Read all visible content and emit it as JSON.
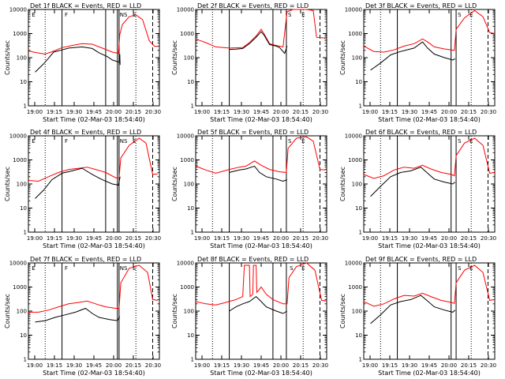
{
  "chart_data": [
    {
      "panel": "1f",
      "title": "Det 1f BLACK = Events, RED = LLD",
      "ylabel": "Counts/sec",
      "xlabel": "Start Time (02-Mar-03 18:54:40)",
      "black": [
        [
          0.2,
          25
        ],
        [
          0.45,
          55
        ],
        [
          0.6,
          95
        ],
        [
          0.75,
          170
        ],
        [
          1.0,
          210
        ],
        [
          1.2,
          250
        ],
        [
          1.6,
          280
        ],
        [
          1.9,
          240
        ],
        [
          2.1,
          160
        ],
        [
          2.35,
          110
        ],
        [
          2.5,
          80
        ],
        [
          2.7,
          65
        ],
        [
          2.72,
          140
        ],
        [
          2.73,
          50
        ]
      ],
      "red": [
        [
          0,
          190
        ],
        [
          0.2,
          165
        ],
        [
          0.5,
          140
        ],
        [
          0.7,
          175
        ],
        [
          1.0,
          260
        ],
        [
          1.3,
          320
        ],
        [
          1.6,
          380
        ],
        [
          1.9,
          360
        ],
        [
          2.2,
          250
        ],
        [
          2.5,
          170
        ],
        [
          2.68,
          150
        ],
        [
          2.72,
          900
        ],
        [
          2.8,
          2400
        ],
        [
          3.0,
          5000
        ],
        [
          3.2,
          6000
        ],
        [
          3.4,
          3800
        ],
        [
          3.6,
          500
        ],
        [
          3.75,
          300
        ],
        [
          3.85,
          290
        ]
      ],
      "markers_dotted": [
        0.5,
        3.2
      ],
      "markers_solid": [
        1.0,
        2.3,
        2.65,
        2.7
      ],
      "markers_dashed": [
        3.7
      ],
      "labels": [
        {
          "x": 0.1,
          "t": "E"
        },
        {
          "x": 1.08,
          "t": "F"
        },
        {
          "x": 2.72,
          "t": "NS"
        },
        {
          "x": 3.1,
          "t": "E"
        }
      ]
    },
    {
      "panel": "2f",
      "title": "Det 2f BLACK = Events, RED = LLD",
      "ylabel": "Counts/sec",
      "xlabel": "Start Time (02-Mar-03 18:54:40)",
      "black": [
        [
          1.0,
          220
        ],
        [
          1.2,
          225
        ],
        [
          1.4,
          240
        ],
        [
          1.6,
          380
        ],
        [
          1.8,
          700
        ],
        [
          1.95,
          1200
        ],
        [
          2.05,
          800
        ],
        [
          2.2,
          350
        ],
        [
          2.4,
          300
        ],
        [
          2.5,
          260
        ],
        [
          2.65,
          150
        ],
        [
          2.72,
          300
        ]
      ],
      "red": [
        [
          0,
          600
        ],
        [
          0.3,
          420
        ],
        [
          0.6,
          280
        ],
        [
          1.0,
          250
        ],
        [
          1.4,
          260
        ],
        [
          1.6,
          420
        ],
        [
          1.8,
          800
        ],
        [
          1.95,
          1500
        ],
        [
          2.05,
          900
        ],
        [
          2.2,
          380
        ],
        [
          2.4,
          320
        ],
        [
          2.6,
          280
        ],
        [
          2.72,
          8000
        ],
        [
          2.9,
          10000
        ],
        [
          3.3,
          10000
        ],
        [
          3.5,
          9000
        ],
        [
          3.6,
          700
        ],
        [
          3.85,
          650
        ]
      ],
      "markers_dotted": [
        0.5,
        3.2
      ],
      "markers_solid": [
        1.0,
        2.3,
        2.7
      ],
      "markers_dashed": [
        3.7
      ],
      "labels": [
        {
          "x": 2.75,
          "t": "S"
        },
        {
          "x": 3.15,
          "t": "E"
        }
      ]
    },
    {
      "panel": "3f",
      "title": "Det 3f BLACK = Events, RED = LLD",
      "ylabel": "Counts/sec",
      "xlabel": "Start Time (02-Mar-03 18:54:40)",
      "black": [
        [
          0.2,
          30
        ],
        [
          0.5,
          60
        ],
        [
          0.8,
          130
        ],
        [
          1.1,
          180
        ],
        [
          1.5,
          250
        ],
        [
          1.75,
          450
        ],
        [
          1.9,
          250
        ],
        [
          2.1,
          140
        ],
        [
          2.4,
          100
        ],
        [
          2.65,
          80
        ],
        [
          2.72,
          90
        ]
      ],
      "red": [
        [
          0,
          300
        ],
        [
          0.3,
          180
        ],
        [
          0.6,
          170
        ],
        [
          0.9,
          210
        ],
        [
          1.2,
          300
        ],
        [
          1.5,
          380
        ],
        [
          1.75,
          600
        ],
        [
          1.9,
          450
        ],
        [
          2.1,
          280
        ],
        [
          2.4,
          230
        ],
        [
          2.7,
          200
        ],
        [
          2.75,
          1500
        ],
        [
          3.0,
          4500
        ],
        [
          3.3,
          9000
        ],
        [
          3.55,
          5000
        ],
        [
          3.75,
          1100
        ],
        [
          3.9,
          1000
        ]
      ],
      "markers_dotted": [
        0.5,
        3.2
      ],
      "markers_solid": [
        1.0,
        2.6,
        2.75
      ],
      "markers_dashed": [
        3.7
      ],
      "labels": [
        {
          "x": 2.8,
          "t": "S"
        },
        {
          "x": 3.15,
          "t": "E"
        }
      ]
    },
    {
      "panel": "4f",
      "title": "Det 4f BLACK = Events, RED = LLD",
      "ylabel": "Counts/sec",
      "xlabel": "Start Time (02-Mar-03 18:54:40)",
      "black": [
        [
          0.2,
          25
        ],
        [
          0.45,
          55
        ],
        [
          0.7,
          150
        ],
        [
          1.0,
          280
        ],
        [
          1.3,
          350
        ],
        [
          1.6,
          450
        ],
        [
          1.9,
          250
        ],
        [
          2.2,
          150
        ],
        [
          2.5,
          100
        ],
        [
          2.68,
          90
        ],
        [
          2.73,
          200
        ]
      ],
      "red": [
        [
          0,
          140
        ],
        [
          0.3,
          130
        ],
        [
          0.6,
          200
        ],
        [
          0.9,
          300
        ],
        [
          1.2,
          400
        ],
        [
          1.5,
          450
        ],
        [
          1.75,
          500
        ],
        [
          2.0,
          400
        ],
        [
          2.3,
          300
        ],
        [
          2.6,
          180
        ],
        [
          2.7,
          180
        ],
        [
          2.75,
          1200
        ],
        [
          3.0,
          4000
        ],
        [
          3.3,
          8000
        ],
        [
          3.5,
          5000
        ],
        [
          3.7,
          250
        ],
        [
          3.85,
          260
        ]
      ],
      "markers_dotted": [
        0.5,
        3.2
      ],
      "markers_solid": [
        1.0,
        2.3,
        2.65,
        2.7
      ],
      "markers_dashed": [
        3.7
      ],
      "labels": [
        {
          "x": 0.1,
          "t": "E"
        },
        {
          "x": 1.08,
          "t": "F"
        },
        {
          "x": 2.72,
          "t": "NS"
        },
        {
          "x": 3.1,
          "t": "E"
        }
      ]
    },
    {
      "panel": "5f",
      "title": "Det 5f BLACK = Events, RED = LLD",
      "ylabel": "Counts/sec",
      "xlabel": "Start Time (02-Mar-03 18:54:40)",
      "black": [
        [
          1.0,
          300
        ],
        [
          1.3,
          380
        ],
        [
          1.5,
          420
        ],
        [
          1.75,
          550
        ],
        [
          1.9,
          300
        ],
        [
          2.1,
          200
        ],
        [
          2.4,
          160
        ],
        [
          2.6,
          130
        ],
        [
          2.72,
          150
        ]
      ],
      "red": [
        [
          0,
          550
        ],
        [
          0.3,
          380
        ],
        [
          0.6,
          280
        ],
        [
          1.0,
          400
        ],
        [
          1.3,
          500
        ],
        [
          1.5,
          550
        ],
        [
          1.75,
          900
        ],
        [
          1.95,
          600
        ],
        [
          2.2,
          400
        ],
        [
          2.5,
          320
        ],
        [
          2.7,
          300
        ],
        [
          2.75,
          3000
        ],
        [
          3.0,
          8000
        ],
        [
          3.3,
          9000
        ],
        [
          3.5,
          6000
        ],
        [
          3.7,
          400
        ],
        [
          3.85,
          380
        ]
      ],
      "markers_dotted": [
        0.5,
        3.2
      ],
      "markers_solid": [
        1.0,
        2.3,
        2.7
      ],
      "markers_dashed": [
        3.7
      ],
      "labels": [
        {
          "x": 2.75,
          "t": "S"
        },
        {
          "x": 3.15,
          "t": "E"
        }
      ]
    },
    {
      "panel": "6f",
      "title": "Det 6f BLACK = Events, RED = LLD",
      "ylabel": "Counts/sec",
      "xlabel": "Start Time (02-Mar-03 18:54:40)",
      "black": [
        [
          0.2,
          30
        ],
        [
          0.5,
          80
        ],
        [
          0.8,
          200
        ],
        [
          1.1,
          300
        ],
        [
          1.4,
          350
        ],
        [
          1.7,
          500
        ],
        [
          1.9,
          280
        ],
        [
          2.1,
          160
        ],
        [
          2.4,
          120
        ],
        [
          2.65,
          100
        ],
        [
          2.72,
          120
        ]
      ],
      "red": [
        [
          0,
          250
        ],
        [
          0.3,
          170
        ],
        [
          0.6,
          220
        ],
        [
          0.9,
          380
        ],
        [
          1.2,
          500
        ],
        [
          1.5,
          450
        ],
        [
          1.75,
          600
        ],
        [
          2.0,
          420
        ],
        [
          2.3,
          300
        ],
        [
          2.6,
          250
        ],
        [
          2.7,
          220
        ],
        [
          2.75,
          1500
        ],
        [
          3.0,
          5000
        ],
        [
          3.3,
          8000
        ],
        [
          3.55,
          4000
        ],
        [
          3.75,
          280
        ],
        [
          3.9,
          300
        ]
      ],
      "markers_dotted": [
        0.5,
        3.2
      ],
      "markers_solid": [
        1.0,
        2.6,
        2.75
      ],
      "markers_dashed": [
        3.7
      ],
      "labels": [
        {
          "x": 2.8,
          "t": "S"
        },
        {
          "x": 3.15,
          "t": "E"
        }
      ]
    },
    {
      "panel": "7f",
      "title": "Det 7f BLACK = Events, RED = LLD",
      "ylabel": "Counts/sec",
      "xlabel": "Start Time (02-Mar-03 18:54:40)",
      "black": [
        [
          0.2,
          35
        ],
        [
          0.5,
          40
        ],
        [
          0.8,
          55
        ],
        [
          1.1,
          70
        ],
        [
          1.4,
          90
        ],
        [
          1.7,
          130
        ],
        [
          1.9,
          80
        ],
        [
          2.1,
          55
        ],
        [
          2.4,
          45
        ],
        [
          2.65,
          40
        ],
        [
          2.72,
          60
        ]
      ],
      "red": [
        [
          0,
          90
        ],
        [
          0.3,
          90
        ],
        [
          0.6,
          110
        ],
        [
          0.9,
          150
        ],
        [
          1.2,
          200
        ],
        [
          1.5,
          230
        ],
        [
          1.75,
          260
        ],
        [
          2.0,
          200
        ],
        [
          2.3,
          150
        ],
        [
          2.6,
          130
        ],
        [
          2.7,
          130
        ],
        [
          2.75,
          1500
        ],
        [
          3.0,
          6000
        ],
        [
          3.3,
          8000
        ],
        [
          3.55,
          4000
        ],
        [
          3.7,
          300
        ],
        [
          3.85,
          280
        ]
      ],
      "markers_dotted": [
        0.5,
        3.2
      ],
      "markers_solid": [
        1.0,
        2.65,
        2.7
      ],
      "markers_dashed": [
        3.7
      ],
      "labels": [
        {
          "x": 0.1,
          "t": "E"
        },
        {
          "x": 1.08,
          "t": "F"
        },
        {
          "x": 2.72,
          "t": "NS"
        },
        {
          "x": 3.1,
          "t": "E"
        }
      ]
    },
    {
      "panel": "8f",
      "title": "Det 8f BLACK = Events, RED = LLD",
      "ylabel": "Counts/sec",
      "xlabel": "Start Time (02-Mar-03 18:54:40)",
      "black": [
        [
          1.0,
          100
        ],
        [
          1.2,
          150
        ],
        [
          1.4,
          200
        ],
        [
          1.6,
          250
        ],
        [
          1.8,
          400
        ],
        [
          1.95,
          250
        ],
        [
          2.1,
          150
        ],
        [
          2.4,
          100
        ],
        [
          2.6,
          80
        ],
        [
          2.72,
          100
        ]
      ],
      "red": [
        [
          0,
          250
        ],
        [
          0.3,
          200
        ],
        [
          0.6,
          180
        ],
        [
          0.9,
          230
        ],
        [
          1.2,
          300
        ],
        [
          1.4,
          400
        ],
        [
          1.45,
          8000
        ],
        [
          1.6,
          8000
        ],
        [
          1.62,
          400
        ],
        [
          1.7,
          500
        ],
        [
          1.72,
          8000
        ],
        [
          1.8,
          8000
        ],
        [
          1.82,
          600
        ],
        [
          1.95,
          1000
        ],
        [
          2.1,
          500
        ],
        [
          2.3,
          300
        ],
        [
          2.6,
          200
        ],
        [
          2.72,
          200
        ],
        [
          2.78,
          2500
        ],
        [
          3.0,
          7000
        ],
        [
          3.3,
          10000
        ],
        [
          3.55,
          5000
        ],
        [
          3.75,
          280
        ],
        [
          3.9,
          260
        ]
      ],
      "markers_dotted": [
        0.5,
        3.2
      ],
      "markers_solid": [
        1.0,
        2.3,
        2.7
      ],
      "markers_dashed": [
        3.7
      ],
      "labels": [
        {
          "x": 2.8,
          "t": "S"
        },
        {
          "x": 3.15,
          "t": "E"
        }
      ]
    },
    {
      "panel": "9f",
      "title": "Det 9f BLACK = Events, RED = LLD",
      "ylabel": "Counts/sec",
      "xlabel": "Start Time (02-Mar-03 18:54:40)",
      "black": [
        [
          0.2,
          30
        ],
        [
          0.5,
          70
        ],
        [
          0.8,
          180
        ],
        [
          1.1,
          250
        ],
        [
          1.4,
          300
        ],
        [
          1.7,
          450
        ],
        [
          1.9,
          260
        ],
        [
          2.1,
          150
        ],
        [
          2.4,
          110
        ],
        [
          2.65,
          90
        ],
        [
          2.72,
          110
        ]
      ],
      "red": [
        [
          0,
          250
        ],
        [
          0.3,
          160
        ],
        [
          0.6,
          200
        ],
        [
          0.9,
          320
        ],
        [
          1.2,
          450
        ],
        [
          1.5,
          420
        ],
        [
          1.75,
          550
        ],
        [
          2.0,
          400
        ],
        [
          2.3,
          280
        ],
        [
          2.6,
          230
        ],
        [
          2.7,
          210
        ],
        [
          2.75,
          1500
        ],
        [
          3.0,
          5000
        ],
        [
          3.3,
          8000
        ],
        [
          3.55,
          4000
        ],
        [
          3.75,
          280
        ],
        [
          3.9,
          300
        ]
      ],
      "markers_dotted": [
        0.5,
        3.2
      ],
      "markers_solid": [
        1.0,
        2.6,
        2.75
      ],
      "markers_dashed": [
        3.7
      ],
      "labels": [
        {
          "x": 2.8,
          "t": "S"
        },
        {
          "x": 3.15,
          "t": "E"
        }
      ]
    }
  ],
  "xticks": [
    "19:00",
    "19:15",
    "19:30",
    "19:45",
    "20:00",
    "20:15",
    "20:30"
  ],
  "yticks": [
    "1",
    "10",
    "100",
    "1000",
    "10000"
  ],
  "xrange": [
    0,
    3.9
  ],
  "yrange_log": [
    1,
    10000
  ],
  "colors": {
    "events": "#000000",
    "lld": "#ff0000"
  }
}
